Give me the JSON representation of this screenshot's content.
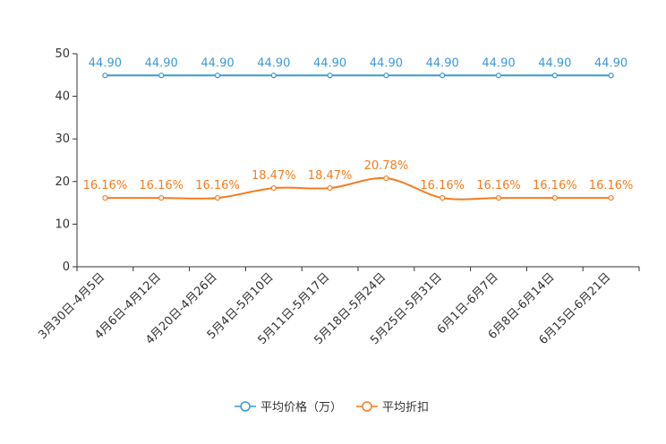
{
  "chart_data": {
    "type": "line",
    "title": "",
    "xlabel": "",
    "ylabel": "",
    "ylim": [
      0,
      50
    ],
    "yticks": [
      0,
      10,
      20,
      30,
      40,
      50
    ],
    "grid": false,
    "legend_position": "bottom-center",
    "categories": [
      "3月30日-4月5日",
      "4月6日-4月12日",
      "4月20日-4月26日",
      "5月4日-5月10日",
      "5月11日-5月17日",
      "5月18日-5月24日",
      "5月25日-5月31日",
      "6月1日-6月7日",
      "6月8日-6月14日",
      "6月15日-6月21日"
    ],
    "series": [
      {
        "name": "平均价格（万）",
        "color": "#3a9ad9",
        "values": [
          44.9,
          44.9,
          44.9,
          44.9,
          44.9,
          44.9,
          44.9,
          44.9,
          44.9,
          44.9
        ],
        "labels": [
          "44.90",
          "44.90",
          "44.90",
          "44.90",
          "44.90",
          "44.90",
          "44.90",
          "44.90",
          "44.90",
          "44.90"
        ]
      },
      {
        "name": "平均折扣",
        "color": "#f57c1f",
        "values": [
          16.16,
          16.16,
          16.16,
          18.47,
          18.47,
          20.78,
          16.16,
          16.16,
          16.16,
          16.16
        ],
        "labels": [
          "16.16%",
          "16.16%",
          "16.16%",
          "18.47%",
          "18.47%",
          "20.78%",
          "16.16%",
          "16.16%",
          "16.16%",
          "16.16%"
        ]
      }
    ]
  }
}
